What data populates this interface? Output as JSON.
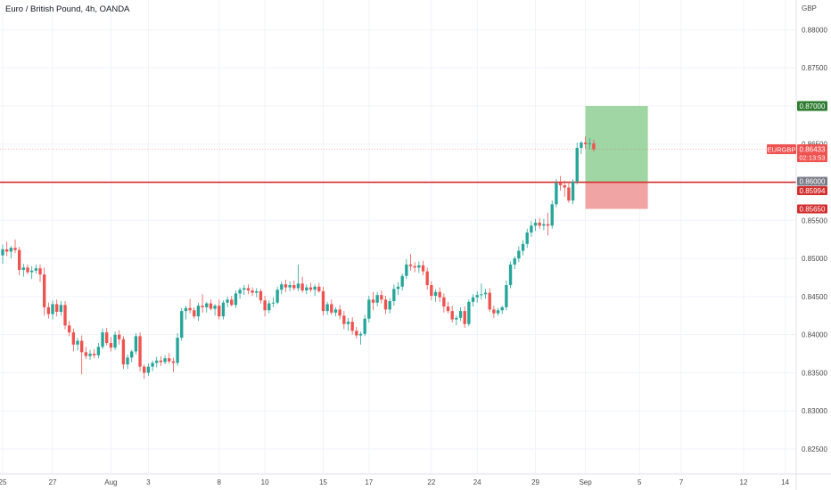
{
  "header": {
    "title": "Euro / British Pound, 4h, OANDA"
  },
  "colors": {
    "up": "#26a69a",
    "down": "#ef5350",
    "grid": "#f0f3fa",
    "axis_text": "#4a4a4a",
    "level_line": "#d32f2f",
    "target_fill": "#8fcf94",
    "stop_fill": "#ef9a9a",
    "target_label_bg": "#2e7d32",
    "stop_label_bg": "#d32f2f",
    "price_label_bg": "#ef5350",
    "level_label_bg": "#787b86"
  },
  "chart_data": {
    "type": "candlestick",
    "symbol": "EURGBP",
    "timeframe": "4h",
    "currency_label": "GBP",
    "y_ticks": [
      "0.88000",
      "0.87500",
      "0.87000",
      "0.86500",
      "0.86000",
      "0.85500",
      "0.85000",
      "0.84500",
      "0.84000",
      "0.83500",
      "0.83000",
      "0.82500"
    ],
    "y_tick_values": [
      0.88,
      0.875,
      0.87,
      0.865,
      0.86,
      0.855,
      0.85,
      0.845,
      0.84,
      0.835,
      0.83,
      0.825
    ],
    "ylim": [
      0.825,
      0.8825
    ],
    "x_ticks": [
      "25",
      "27",
      "Aug",
      "3",
      "8",
      "10",
      "15",
      "17",
      "22",
      "24",
      "29",
      "Sep",
      "5",
      "7",
      "12",
      "14"
    ],
    "x_tick_index": [
      0,
      12,
      26,
      35,
      52,
      63,
      77,
      88,
      103,
      114,
      128,
      140,
      153,
      163,
      178,
      188
    ],
    "x_range": [
      0,
      190
    ],
    "candles": [
      [
        0.8504,
        0.8518,
        0.8493,
        0.8512
      ],
      [
        0.8512,
        0.8522,
        0.8503,
        0.8509
      ],
      [
        0.8509,
        0.8516,
        0.85,
        0.8514
      ],
      [
        0.8514,
        0.8525,
        0.8507,
        0.8511
      ],
      [
        0.8511,
        0.8515,
        0.8478,
        0.8485
      ],
      [
        0.8485,
        0.8493,
        0.8476,
        0.8488
      ],
      [
        0.8488,
        0.8492,
        0.8479,
        0.8482
      ],
      [
        0.8482,
        0.849,
        0.8473,
        0.8484
      ],
      [
        0.8484,
        0.8492,
        0.848,
        0.8487
      ],
      [
        0.8487,
        0.8492,
        0.8469,
        0.8479
      ],
      [
        0.8479,
        0.8488,
        0.8425,
        0.8436
      ],
      [
        0.8436,
        0.8442,
        0.8421,
        0.8427
      ],
      [
        0.8427,
        0.8445,
        0.842,
        0.844
      ],
      [
        0.844,
        0.8446,
        0.8424,
        0.843
      ],
      [
        0.843,
        0.8444,
        0.8425,
        0.8439
      ],
      [
        0.8439,
        0.8444,
        0.8407,
        0.8412
      ],
      [
        0.8412,
        0.8418,
        0.8398,
        0.8403
      ],
      [
        0.8403,
        0.8408,
        0.8378,
        0.8387
      ],
      [
        0.8387,
        0.8396,
        0.8379,
        0.8392
      ],
      [
        0.8392,
        0.8399,
        0.8348,
        0.8377
      ],
      [
        0.8377,
        0.8384,
        0.8368,
        0.8372
      ],
      [
        0.8372,
        0.838,
        0.8367,
        0.8375
      ],
      [
        0.8375,
        0.8381,
        0.8369,
        0.8373
      ],
      [
        0.8373,
        0.8389,
        0.8369,
        0.8384
      ],
      [
        0.8384,
        0.8408,
        0.8381,
        0.8403
      ],
      [
        0.8403,
        0.8409,
        0.8386,
        0.8389
      ],
      [
        0.8389,
        0.8397,
        0.8378,
        0.8383
      ],
      [
        0.8383,
        0.8404,
        0.838,
        0.84
      ],
      [
        0.84,
        0.8406,
        0.8387,
        0.8394
      ],
      [
        0.8394,
        0.8398,
        0.8355,
        0.8361
      ],
      [
        0.8361,
        0.8374,
        0.8355,
        0.837
      ],
      [
        0.837,
        0.838,
        0.8364,
        0.8378
      ],
      [
        0.8378,
        0.8402,
        0.8374,
        0.8398
      ],
      [
        0.8398,
        0.8403,
        0.8352,
        0.8358
      ],
      [
        0.8358,
        0.8361,
        0.8342,
        0.835
      ],
      [
        0.835,
        0.8362,
        0.8346,
        0.8358
      ],
      [
        0.8358,
        0.8366,
        0.8352,
        0.8363
      ],
      [
        0.8363,
        0.8371,
        0.8357,
        0.8366
      ],
      [
        0.8366,
        0.8372,
        0.8359,
        0.8364
      ],
      [
        0.8364,
        0.8373,
        0.8361,
        0.8369
      ],
      [
        0.8369,
        0.8376,
        0.8362,
        0.8365
      ],
      [
        0.8365,
        0.837,
        0.8351,
        0.8363
      ],
      [
        0.8363,
        0.8402,
        0.8359,
        0.8396
      ],
      [
        0.8396,
        0.8435,
        0.8392,
        0.8431
      ],
      [
        0.8431,
        0.8438,
        0.842,
        0.8435
      ],
      [
        0.8435,
        0.8447,
        0.8428,
        0.8432
      ],
      [
        0.8432,
        0.8436,
        0.8421,
        0.8424
      ],
      [
        0.8424,
        0.8442,
        0.8418,
        0.8438
      ],
      [
        0.8438,
        0.8453,
        0.8429,
        0.8436
      ],
      [
        0.8436,
        0.8443,
        0.8429,
        0.8441
      ],
      [
        0.8441,
        0.8446,
        0.8432,
        0.8434
      ],
      [
        0.8434,
        0.844,
        0.8425,
        0.8438
      ],
      [
        0.8438,
        0.8446,
        0.842,
        0.8424
      ],
      [
        0.8424,
        0.8445,
        0.842,
        0.8442
      ],
      [
        0.8442,
        0.845,
        0.8436,
        0.8446
      ],
      [
        0.8446,
        0.8451,
        0.8437,
        0.8439
      ],
      [
        0.8439,
        0.8458,
        0.8435,
        0.8454
      ],
      [
        0.8454,
        0.8462,
        0.8447,
        0.8459
      ],
      [
        0.8459,
        0.8465,
        0.8452,
        0.8461
      ],
      [
        0.8461,
        0.8466,
        0.8453,
        0.8458
      ],
      [
        0.8458,
        0.8462,
        0.8451,
        0.8455
      ],
      [
        0.8455,
        0.8461,
        0.8449,
        0.8457
      ],
      [
        0.8457,
        0.846,
        0.8441,
        0.8445
      ],
      [
        0.8445,
        0.8451,
        0.8424,
        0.8432
      ],
      [
        0.8432,
        0.8445,
        0.8428,
        0.8441
      ],
      [
        0.8441,
        0.8449,
        0.8436,
        0.8442
      ],
      [
        0.8442,
        0.8463,
        0.844,
        0.8459
      ],
      [
        0.8459,
        0.847,
        0.8453,
        0.8466
      ],
      [
        0.8466,
        0.8472,
        0.8456,
        0.8462
      ],
      [
        0.8462,
        0.847,
        0.8457,
        0.8465
      ],
      [
        0.8465,
        0.8471,
        0.8458,
        0.8461
      ],
      [
        0.8461,
        0.8492,
        0.8457,
        0.8467
      ],
      [
        0.8467,
        0.8476,
        0.8455,
        0.8458
      ],
      [
        0.8458,
        0.8466,
        0.8453,
        0.8462
      ],
      [
        0.8462,
        0.8468,
        0.8456,
        0.8459
      ],
      [
        0.8459,
        0.8466,
        0.8451,
        0.8463
      ],
      [
        0.8463,
        0.8468,
        0.8455,
        0.8457
      ],
      [
        0.8457,
        0.8463,
        0.8425,
        0.8431
      ],
      [
        0.8431,
        0.8443,
        0.8426,
        0.844
      ],
      [
        0.844,
        0.8446,
        0.8426,
        0.8429
      ],
      [
        0.8429,
        0.8436,
        0.8424,
        0.8433
      ],
      [
        0.8433,
        0.8439,
        0.842,
        0.8425
      ],
      [
        0.8425,
        0.8431,
        0.8407,
        0.8414
      ],
      [
        0.8414,
        0.8422,
        0.8405,
        0.8417
      ],
      [
        0.8417,
        0.8423,
        0.84,
        0.8405
      ],
      [
        0.8405,
        0.841,
        0.8395,
        0.8399
      ],
      [
        0.8399,
        0.8404,
        0.8387,
        0.8401
      ],
      [
        0.8401,
        0.8426,
        0.8398,
        0.8421
      ],
      [
        0.8421,
        0.8451,
        0.8416,
        0.8446
      ],
      [
        0.8446,
        0.8456,
        0.8432,
        0.8442
      ],
      [
        0.8442,
        0.8456,
        0.8437,
        0.8452
      ],
      [
        0.8452,
        0.8458,
        0.8441,
        0.8446
      ],
      [
        0.8446,
        0.8451,
        0.8427,
        0.8433
      ],
      [
        0.8433,
        0.8448,
        0.8428,
        0.8444
      ],
      [
        0.8444,
        0.8466,
        0.8438,
        0.846
      ],
      [
        0.846,
        0.8469,
        0.8452,
        0.8463
      ],
      [
        0.8463,
        0.848,
        0.8458,
        0.8477
      ],
      [
        0.8477,
        0.8499,
        0.8473,
        0.8492
      ],
      [
        0.8492,
        0.8506,
        0.8484,
        0.849
      ],
      [
        0.849,
        0.8495,
        0.8482,
        0.8488
      ],
      [
        0.8488,
        0.8496,
        0.8481,
        0.8491
      ],
      [
        0.8491,
        0.8497,
        0.8478,
        0.8483
      ],
      [
        0.8483,
        0.8488,
        0.8459,
        0.8465
      ],
      [
        0.8465,
        0.847,
        0.8445,
        0.8451
      ],
      [
        0.8451,
        0.846,
        0.8443,
        0.8456
      ],
      [
        0.8456,
        0.8462,
        0.8443,
        0.8449
      ],
      [
        0.8449,
        0.8454,
        0.8429,
        0.8437
      ],
      [
        0.8437,
        0.8443,
        0.8428,
        0.8431
      ],
      [
        0.8431,
        0.8438,
        0.8416,
        0.842
      ],
      [
        0.842,
        0.8425,
        0.8412,
        0.8422
      ],
      [
        0.8422,
        0.8436,
        0.8418,
        0.8431
      ],
      [
        0.8431,
        0.8437,
        0.8409,
        0.8414
      ],
      [
        0.8414,
        0.8446,
        0.8411,
        0.8443
      ],
      [
        0.8443,
        0.8453,
        0.8437,
        0.8449
      ],
      [
        0.8449,
        0.8457,
        0.8442,
        0.8452
      ],
      [
        0.8452,
        0.8467,
        0.8446,
        0.8453
      ],
      [
        0.8453,
        0.846,
        0.8447,
        0.8455
      ],
      [
        0.8455,
        0.8461,
        0.843,
        0.8433
      ],
      [
        0.8433,
        0.8438,
        0.8422,
        0.8428
      ],
      [
        0.8428,
        0.8435,
        0.8425,
        0.8432
      ],
      [
        0.8432,
        0.8438,
        0.8427,
        0.8436
      ],
      [
        0.8436,
        0.8471,
        0.8432,
        0.8465
      ],
      [
        0.8465,
        0.8496,
        0.8461,
        0.8492
      ],
      [
        0.8492,
        0.8503,
        0.8486,
        0.85
      ],
      [
        0.85,
        0.8516,
        0.8495,
        0.851
      ],
      [
        0.851,
        0.8524,
        0.8504,
        0.8519
      ],
      [
        0.8519,
        0.8539,
        0.8514,
        0.8534
      ],
      [
        0.8534,
        0.8549,
        0.8528,
        0.8543
      ],
      [
        0.8543,
        0.8552,
        0.8536,
        0.8547
      ],
      [
        0.8547,
        0.8553,
        0.8539,
        0.8543
      ],
      [
        0.8543,
        0.8552,
        0.8537,
        0.8545
      ],
      [
        0.8545,
        0.856,
        0.853,
        0.8543
      ],
      [
        0.8543,
        0.8576,
        0.8539,
        0.8571
      ],
      [
        0.8571,
        0.8604,
        0.8567,
        0.8599
      ],
      [
        0.8599,
        0.8608,
        0.8589,
        0.8596
      ],
      [
        0.8596,
        0.8602,
        0.8581,
        0.8593
      ],
      [
        0.8593,
        0.8601,
        0.8573,
        0.8576
      ],
      [
        0.8576,
        0.8604,
        0.8571,
        0.8601
      ],
      [
        0.8601,
        0.8652,
        0.8597,
        0.8645
      ],
      [
        0.8645,
        0.8654,
        0.8637,
        0.8652
      ],
      [
        0.8652,
        0.866,
        0.8644,
        0.865
      ],
      [
        0.865,
        0.8658,
        0.8643,
        0.8651
      ],
      [
        0.8651,
        0.8656,
        0.864,
        0.8643
      ]
    ],
    "levels": [
      {
        "name": "resistance",
        "value": 0.86
      },
      {
        "name": "current",
        "value": 0.86433
      }
    ],
    "position": {
      "entry": 0.85994,
      "target": 0.87,
      "stop": 0.8565,
      "start_index": 140,
      "end_index": 155
    },
    "labels": {
      "target": "0.87000",
      "symbol": "EURGBP",
      "last_price": "0.86433",
      "countdown": "02:13:53",
      "level": "0.86000",
      "entry": "0.85994",
      "stop": "0.85650"
    }
  }
}
